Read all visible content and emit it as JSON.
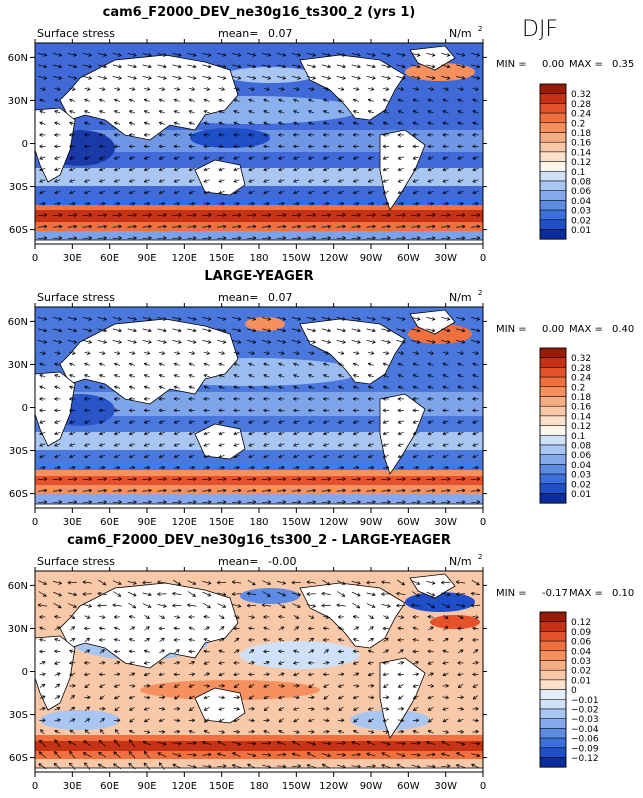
{
  "season": "DJF",
  "chart_data": [
    {
      "type": "heatmap",
      "title": "cam6_F2000_DEV_ne30g16_ts300_2 (yrs 1)",
      "left_label": "Surface stress",
      "mean_label": "mean=",
      "mean_value": "0.07",
      "units_main": "N/m",
      "units_exp": "2",
      "min_label": "MIN =",
      "min_value": "0.00",
      "max_label": "MAX =",
      "max_value": "0.35",
      "lat_ticks": [
        "60N",
        "30N",
        "0",
        "30S",
        "60S"
      ],
      "lat_values": [
        60,
        30,
        0,
        -30,
        -60
      ],
      "lon_ticks": [
        "0",
        "30E",
        "60E",
        "90E",
        "120E",
        "150E",
        "180",
        "150W",
        "120W",
        "90W",
        "60W",
        "30W",
        "0"
      ],
      "xlim": [
        0,
        360
      ],
      "ylim": [
        -70,
        70
      ],
      "levels": [
        "0.32",
        "0.28",
        "0.24",
        "0.2",
        "0.18",
        "0.16",
        "0.14",
        "0.12",
        "0.1",
        "0.08",
        "0.06",
        "0.04",
        "0.03",
        "0.02",
        "0.01"
      ],
      "colors": [
        "#9b1a05",
        "#c53216",
        "#e4512a",
        "#f1703f",
        "#f6905f",
        "#f8ad85",
        "#f9c8a8",
        "#fae0c9",
        "#fdf6ec",
        "#cfe1f9",
        "#a9c5f2",
        "#85a9ec",
        "#5e8be4",
        "#3a6fdc",
        "#1e4fc9",
        "#0c2d9b"
      ]
    },
    {
      "type": "heatmap",
      "title": "LARGE-YEAGER",
      "left_label": "Surface stress",
      "mean_label": "mean=",
      "mean_value": "0.07",
      "units_main": "N/m",
      "units_exp": "2",
      "min_label": "MIN =",
      "min_value": "0.00",
      "max_label": "MAX =",
      "max_value": "0.40",
      "lat_ticks": [
        "60N",
        "30N",
        "0",
        "30S",
        "60S"
      ],
      "lat_values": [
        60,
        30,
        0,
        -30,
        -60
      ],
      "lon_ticks": [
        "0",
        "30E",
        "60E",
        "90E",
        "120E",
        "150E",
        "180",
        "150W",
        "120W",
        "90W",
        "60W",
        "30W",
        "0"
      ],
      "xlim": [
        0,
        360
      ],
      "ylim": [
        -70,
        70
      ],
      "levels": [
        "0.32",
        "0.28",
        "0.24",
        "0.2",
        "0.18",
        "0.16",
        "0.14",
        "0.12",
        "0.1",
        "0.08",
        "0.06",
        "0.04",
        "0.03",
        "0.02",
        "0.01"
      ],
      "colors": [
        "#9b1a05",
        "#c53216",
        "#e4512a",
        "#f1703f",
        "#f6905f",
        "#f8ad85",
        "#f9c8a8",
        "#fae0c9",
        "#fdf6ec",
        "#cfe1f9",
        "#a9c5f2",
        "#85a9ec",
        "#5e8be4",
        "#3a6fdc",
        "#1e4fc9",
        "#0c2d9b"
      ]
    },
    {
      "type": "heatmap",
      "title": "cam6_F2000_DEV_ne30g16_ts300_2 - LARGE-YEAGER",
      "left_label": "Surface stress",
      "mean_label": "mean=",
      "mean_value": "-0.00",
      "units_main": "N/m",
      "units_exp": "2",
      "min_label": "MIN =",
      "min_value": "-0.17",
      "max_label": "MAX =",
      "max_value": "0.10",
      "lat_ticks": [
        "60N",
        "30N",
        "0",
        "30S",
        "60S"
      ],
      "lat_values": [
        60,
        30,
        0,
        -30,
        -60
      ],
      "lon_ticks": [
        "0",
        "30E",
        "60E",
        "90E",
        "120E",
        "150E",
        "180",
        "150W",
        "120W",
        "90W",
        "60W",
        "30W",
        "0"
      ],
      "xlim": [
        0,
        360
      ],
      "ylim": [
        -70,
        70
      ],
      "levels": [
        "0.12",
        "0.09",
        "0.06",
        "0.04",
        "0.03",
        "0.02",
        "0.01",
        "0",
        "−0.01",
        "−0.02",
        "−0.03",
        "−0.04",
        "−0.06",
        "−0.09",
        "−0.12"
      ],
      "colors": [
        "#9b1a05",
        "#c53216",
        "#e4512a",
        "#f1703f",
        "#f6905f",
        "#f8ad85",
        "#f9c8a8",
        "#fae0c9",
        "#e4eefa",
        "#cfe1f9",
        "#a9c5f2",
        "#85a9ec",
        "#5e8be4",
        "#3a6fdc",
        "#1e4fc9",
        "#0c2d9b"
      ]
    }
  ]
}
